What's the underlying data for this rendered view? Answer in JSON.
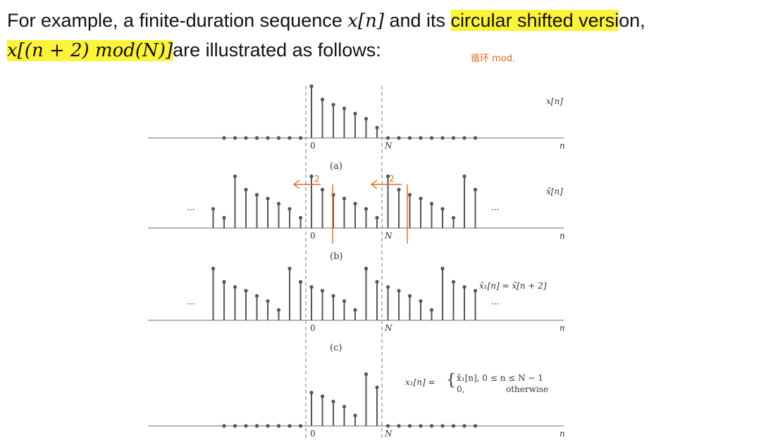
{
  "text": {
    "line1_before": "For example, a finite-duration sequence ",
    "line1_math": "x[n]",
    "line1_mid": " and its ",
    "line1_highlight": "circular shifted versi",
    "line1_end": "on,",
    "line2_math": "x[(n + 2) mod(N)]",
    "line2_rest": "are illustrated as follows:",
    "handwritten_note": "循环 mod."
  },
  "figure": {
    "panels": [
      {
        "caption": "(a)",
        "label": "x[n]",
        "zero": "0",
        "N": "N",
        "axis": "n",
        "dots_left": "",
        "dots_right": ""
      },
      {
        "caption": "(b)",
        "label": "x̃[n]",
        "zero": "0",
        "N": "N",
        "axis": "n",
        "dots_left": "···",
        "dots_right": "···"
      },
      {
        "caption": "(c)",
        "label": "x̃₁[n] = x̃[n + 2]",
        "zero": "0",
        "N": "N",
        "axis": "n",
        "dots_left": "···",
        "dots_right": "···"
      },
      {
        "caption": "",
        "label": "",
        "zero": "0",
        "N": "N",
        "axis": "n",
        "dots_left": "",
        "dots_right": ""
      }
    ],
    "x1_def": {
      "lhs": "x₁[n] = ",
      "case1": "x̃₁[n], 0 ≤ n ≤ N − 1",
      "case2_val": "0,",
      "case2_cond": "otherwise"
    },
    "annotations": {
      "shift_left_1": "2",
      "shift_left_2": "2"
    }
  },
  "sequence": {
    "x_period": [
      7,
      5.2,
      4.5,
      4,
      3.3,
      2.6,
      1.4
    ],
    "note": ""
  },
  "colors": {
    "highlight": "#fcf33a",
    "ink": "#555555",
    "annotation": "#e06a1c"
  }
}
